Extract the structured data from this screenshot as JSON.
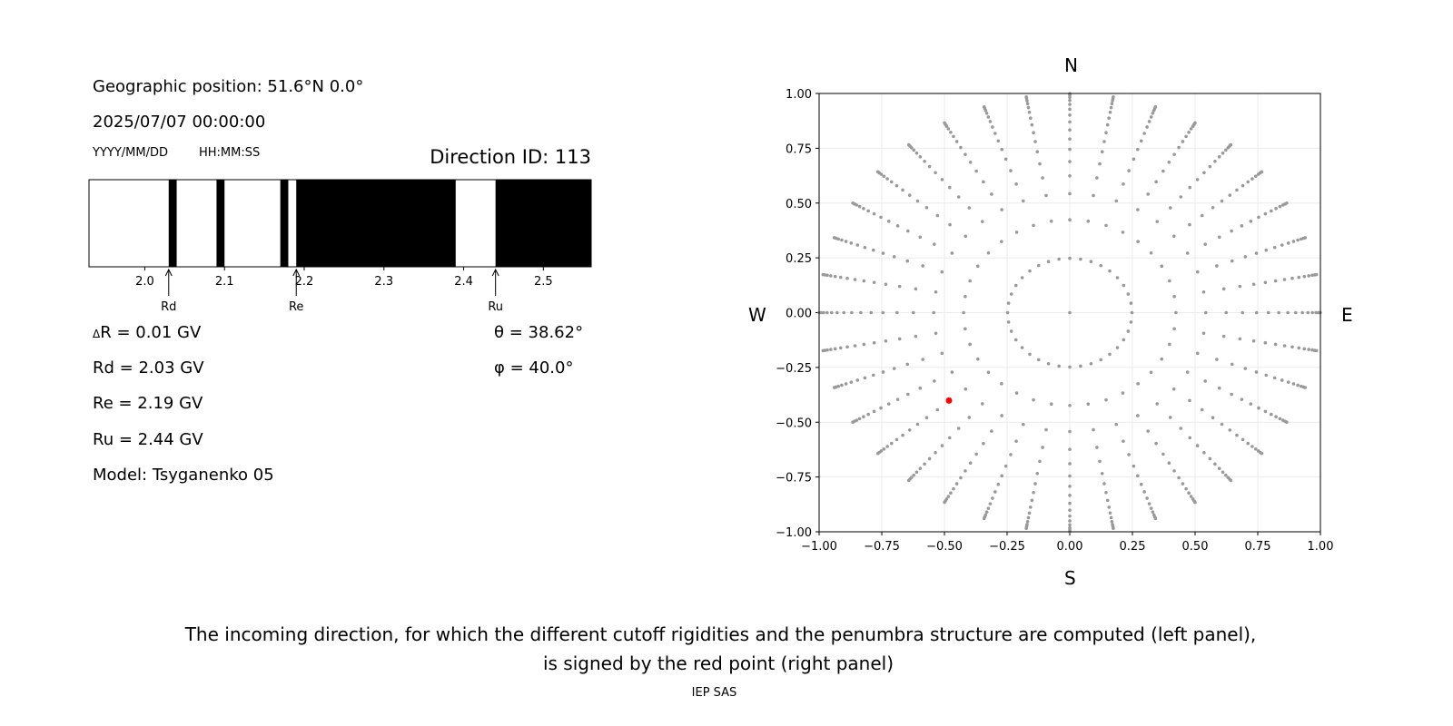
{
  "header": {
    "geo_position": "Geographic position: 51.6°N 0.0°",
    "datetime": "2025/07/07 00:00:00",
    "date_format": "YYYY/MM/DD",
    "time_format": "HH:MM:SS",
    "direction_id": "Direction ID: 113"
  },
  "params": {
    "delta_r_symbol": "Δ",
    "delta_r": "R = 0.01 GV",
    "rd": "Rd = 2.03 GV",
    "re": "Re = 2.19 GV",
    "ru": "Ru = 2.44 GV",
    "model": "Model: Tsyganenko 05",
    "theta": "θ = 38.62°",
    "phi": "φ = 40.0°"
  },
  "compass": {
    "n": "N",
    "s": "S",
    "w": "W",
    "e": "E"
  },
  "caption": {
    "line1": "The incoming direction, for which the different cutoff rigidities and the penumbra structure are computed (left panel),",
    "line2": "is signed by the red point (right panel)"
  },
  "footer": "IEP SAS",
  "chart_data": [
    {
      "type": "bar",
      "description_role": "penumbra structure",
      "xlim": [
        1.93,
        2.56
      ],
      "xticks": [
        2.0,
        2.1,
        2.2,
        2.3,
        2.4,
        2.5
      ],
      "xtick_labels": [
        "2.0",
        "2.1",
        "2.2",
        "2.3",
        "2.4",
        "2.5"
      ],
      "forbidden_intervals": [
        [
          2.03,
          2.04
        ],
        [
          2.09,
          2.1
        ],
        [
          2.17,
          2.18
        ],
        [
          2.19,
          2.39
        ],
        [
          2.44,
          2.56
        ]
      ],
      "colors": {
        "forbidden": "#000000",
        "allowed": "#ffffff"
      },
      "annotations": [
        {
          "label": "Rd",
          "x": 2.03
        },
        {
          "label": "Re",
          "x": 2.19
        },
        {
          "label": "Ru",
          "x": 2.44
        }
      ]
    },
    {
      "type": "scatter",
      "xlim": [
        -1.0,
        1.0
      ],
      "ylim": [
        -1.0,
        1.0
      ],
      "xticks": [
        "−1.00",
        "−0.75",
        "−0.50",
        "−0.25",
        "0.00",
        "0.25",
        "0.50",
        "0.75",
        "1.00"
      ],
      "yticks": [
        "1.00",
        "0.75",
        "0.50",
        "0.25",
        "0.00",
        "−0.25",
        "−0.50",
        "−0.75",
        "−1.00"
      ],
      "grid": true,
      "grid_directions": {
        "theta_deg": [
          0,
          14.36,
          25.06,
          32.86,
          38.62,
          43.57,
          48.19,
          52.41,
          56.49,
          60.47,
          64.34,
          68.15,
          71.83,
          75.52,
          79.19,
          82.82,
          88.21
        ],
        "phi_deg": [
          0,
          10,
          20,
          30,
          40,
          50,
          60,
          70,
          80,
          90,
          100,
          110,
          120,
          130,
          140,
          150,
          160,
          170,
          180,
          190,
          200,
          210,
          220,
          230,
          240,
          250,
          260,
          270,
          280,
          290,
          300,
          310,
          320,
          330,
          340,
          350
        ],
        "color": "#999999"
      },
      "selected_point": {
        "x": -0.482,
        "y": -0.401,
        "color": "#ff0000"
      }
    }
  ]
}
